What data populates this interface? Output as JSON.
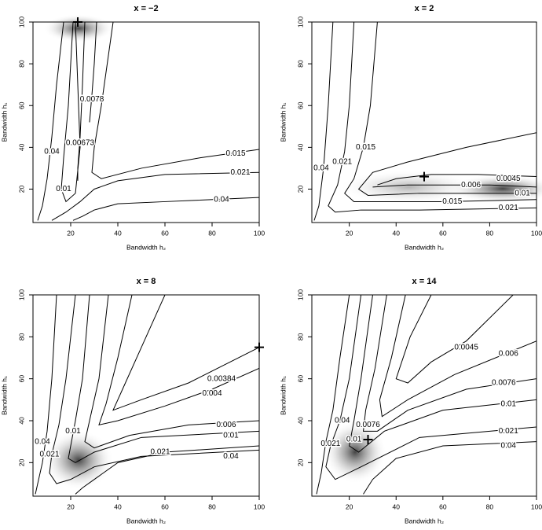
{
  "chart_data": [
    {
      "type": "contour",
      "title": "x = −2",
      "xlabel": "Bandwidth h₂",
      "ylabel": "Bandwidth h₁",
      "xlim": [
        4,
        100
      ],
      "ylim": [
        4,
        100
      ],
      "xticks": [
        20,
        40,
        60,
        80,
        100
      ],
      "yticks": [
        20,
        40,
        60,
        80,
        100
      ],
      "marker": {
        "x": 23,
        "y": 100
      },
      "contours": [
        {
          "level": 0.04,
          "x": [
            17,
            14,
            12,
            10,
            8,
            6
          ],
          "y": [
            100,
            70,
            45,
            25,
            12,
            5
          ],
          "labels": [
            [
              12,
              38
            ]
          ]
        },
        {
          "level": 0.01,
          "x": [
            21,
            19,
            17,
            16,
            18,
            22,
            24,
            23,
            22
          ],
          "y": [
            100,
            60,
            35,
            20,
            14,
            18,
            40,
            70,
            100
          ],
          "labels": [
            [
              17,
              20
            ]
          ]
        },
        {
          "level": 0.00673,
          "x": [
            26,
            25,
            24,
            23,
            23
          ],
          "y": [
            100,
            70,
            45,
            30,
            24
          ],
          "labels": [
            [
              24,
              42
            ]
          ]
        },
        {
          "level": 0.0078,
          "x": [
            31,
            30,
            29,
            28
          ],
          "y": [
            100,
            80,
            65,
            52
          ],
          "labels": [
            [
              29,
              63
            ]
          ]
        },
        {
          "level": 0.015,
          "x": [
            38,
            33,
            30,
            29,
            33,
            50,
            75,
            100
          ],
          "y": [
            100,
            60,
            40,
            28,
            25,
            30,
            35,
            39
          ],
          "labels": [
            [
              90,
              37
            ]
          ]
        },
        {
          "level": 0.021,
          "x": [
            100,
            60,
            40,
            30,
            24,
            18,
            12
          ],
          "y": [
            28,
            27,
            24,
            20,
            14,
            9,
            5
          ],
          "labels": [
            [
              92,
              28
            ]
          ]
        },
        {
          "level": 0.04,
          "x": [
            100,
            60,
            40,
            30,
            25,
            21
          ],
          "y": [
            16,
            14,
            13,
            10,
            7,
            5
          ],
          "labels": [
            [
              84,
              15
            ]
          ]
        }
      ]
    },
    {
      "type": "contour",
      "title": "x = 2",
      "xlabel": "Bandwidth h₂",
      "ylabel": "Bandwidth h₁",
      "xlim": [
        4,
        100
      ],
      "ylim": [
        4,
        100
      ],
      "xticks": [
        20,
        40,
        60,
        80,
        100
      ],
      "yticks": [
        20,
        40,
        60,
        80,
        100
      ],
      "marker": {
        "x": 52,
        "y": 26
      },
      "contours": [
        {
          "level": 0.04,
          "x": [
            13,
            11,
            9,
            7,
            5
          ],
          "y": [
            100,
            60,
            30,
            12,
            5
          ],
          "labels": [
            [
              8,
              30
            ]
          ]
        },
        {
          "level": 0.021,
          "x": [
            22,
            20,
            18,
            15,
            11,
            14,
            25,
            50,
            100
          ],
          "y": [
            100,
            60,
            38,
            22,
            12,
            9,
            10,
            10,
            11
          ],
          "labels": [
            [
              17,
              33
            ],
            [
              88,
              11
            ]
          ]
        },
        {
          "level": 0.015,
          "x": [
            32,
            29,
            26,
            22,
            18,
            22,
            35,
            60,
            100
          ],
          "y": [
            100,
            60,
            40,
            25,
            18,
            14,
            14,
            14,
            15
          ],
          "labels": [
            [
              27,
              40
            ],
            [
              64,
              14
            ]
          ]
        },
        {
          "level": 0.01,
          "x": [
            100,
            70,
            45,
            30,
            24,
            28,
            50,
            100
          ],
          "y": [
            47,
            40,
            33,
            28,
            20,
            17,
            18,
            18
          ],
          "labels": [
            [
              94,
              18
            ]
          ]
        },
        {
          "level": 0.006,
          "x": [
            30,
            45,
            60,
            80,
            100
          ],
          "y": [
            21,
            22,
            22,
            22,
            21
          ],
          "labels": [
            [
              72,
              22
            ]
          ]
        },
        {
          "level": 0.0045,
          "x": [
            32,
            40,
            55,
            75,
            100
          ],
          "y": [
            22,
            25,
            27,
            27,
            26
          ],
          "labels": [
            [
              88,
              25
            ]
          ]
        }
      ]
    },
    {
      "type": "contour",
      "title": "x = 8",
      "xlabel": "Bandwidth h₂",
      "ylabel": "Bandwidth h₁",
      "xlim": [
        4,
        100
      ],
      "ylim": [
        4,
        100
      ],
      "xticks": [
        20,
        40,
        60,
        80,
        100
      ],
      "yticks": [
        20,
        40,
        60,
        80,
        100
      ],
      "marker": {
        "x": 100,
        "y": 75
      },
      "contours": [
        {
          "level": 0.04,
          "x": [
            14,
            12,
            10,
            8,
            6,
            5
          ],
          "y": [
            100,
            60,
            35,
            20,
            10,
            5
          ],
          "labels": [
            [
              8,
              30
            ]
          ]
        },
        {
          "level": 0.021,
          "x": [
            22,
            18,
            15,
            12,
            11,
            14,
            20,
            30,
            50,
            100
          ],
          "y": [
            100,
            60,
            38,
            24,
            15,
            10,
            12,
            18,
            23,
            26
          ],
          "labels": [
            [
              11,
              24
            ],
            [
              58,
              25
            ]
          ]
        },
        {
          "level": 0.04,
          "x": [
            100,
            60,
            40,
            30,
            25,
            22
          ],
          "y": [
            28,
            25,
            20,
            12,
            8,
            5
          ],
          "labels": [
            [
              88,
              23
            ]
          ]
        },
        {
          "level": 0.01,
          "x": [
            28,
            25,
            22,
            20,
            19,
            22,
            30,
            50,
            100
          ],
          "y": [
            100,
            60,
            40,
            28,
            22,
            20,
            25,
            32,
            35
          ],
          "labels": [
            [
              21,
              35
            ],
            [
              88,
              33
            ]
          ]
        },
        {
          "level": 0.006,
          "x": [
            36,
            32,
            28,
            26,
            30,
            45,
            70,
            100
          ],
          "y": [
            100,
            60,
            40,
            30,
            27,
            33,
            38,
            40
          ],
          "labels": [
            [
              86,
              38
            ]
          ]
        },
        {
          "level": 0.004,
          "x": [
            46,
            40,
            35,
            32,
            40,
            60,
            80,
            100
          ],
          "y": [
            100,
            70,
            48,
            38,
            40,
            47,
            55,
            65
          ],
          "labels": [
            [
              80,
              53
            ]
          ]
        },
        {
          "level": 0.00384,
          "x": [
            60,
            50,
            42,
            38,
            50,
            70,
            100
          ],
          "y": [
            100,
            75,
            55,
            45,
            50,
            58,
            75
          ],
          "labels": [
            [
              84,
              60
            ]
          ]
        }
      ]
    },
    {
      "type": "contour",
      "title": "x = 14",
      "xlabel": "Bandwidth h₂",
      "ylabel": "Bandwidth h₁",
      "xlim": [
        4,
        100
      ],
      "ylim": [
        4,
        100
      ],
      "xticks": [
        20,
        40,
        60,
        80,
        100
      ],
      "yticks": [
        20,
        40,
        60,
        80,
        100
      ],
      "marker": {
        "x": 28,
        "y": 31
      },
      "contours": [
        {
          "level": 0.04,
          "x": [
            20,
            16,
            13,
            10,
            8,
            6
          ],
          "y": [
            100,
            70,
            45,
            30,
            15,
            5
          ],
          "labels": [
            [
              17,
              40
            ]
          ]
        },
        {
          "level": 0.021,
          "x": [
            25,
            20,
            16,
            12,
            10,
            14,
            25,
            50,
            100
          ],
          "y": [
            100,
            60,
            40,
            28,
            18,
            12,
            18,
            32,
            37
          ],
          "labels": [
            [
              12,
              29
            ],
            [
              88,
              35
            ]
          ]
        },
        {
          "level": 0.04,
          "x": [
            100,
            60,
            40,
            30,
            26
          ],
          "y": [
            30,
            28,
            22,
            12,
            5
          ],
          "labels": [
            [
              88,
              28
            ]
          ]
        },
        {
          "level": 0.01,
          "x": [
            30,
            25,
            22,
            20,
            24,
            35,
            60,
            100
          ],
          "y": [
            100,
            60,
            40,
            28,
            25,
            35,
            45,
            50
          ],
          "labels": [
            [
              22,
              31
            ],
            [
              88,
              48
            ]
          ]
        },
        {
          "level": 0.0076,
          "x": [
            36,
            31,
            27,
            26,
            32,
            45,
            70,
            100
          ],
          "y": [
            100,
            65,
            45,
            35,
            35,
            45,
            55,
            60
          ],
          "labels": [
            [
              28,
              38
            ],
            [
              86,
              58
            ]
          ]
        },
        {
          "level": 0.006,
          "x": [
            44,
            38,
            33,
            34,
            45,
            65,
            100
          ],
          "y": [
            100,
            70,
            50,
            42,
            50,
            62,
            78
          ],
          "labels": [
            [
              88,
              72
            ]
          ]
        },
        {
          "level": 0.0045,
          "x": [
            55,
            46,
            40,
            45,
            55,
            70,
            90
          ],
          "y": [
            100,
            80,
            60,
            58,
            68,
            78,
            100
          ],
          "labels": [
            [
              70,
              75
            ]
          ]
        }
      ]
    }
  ]
}
